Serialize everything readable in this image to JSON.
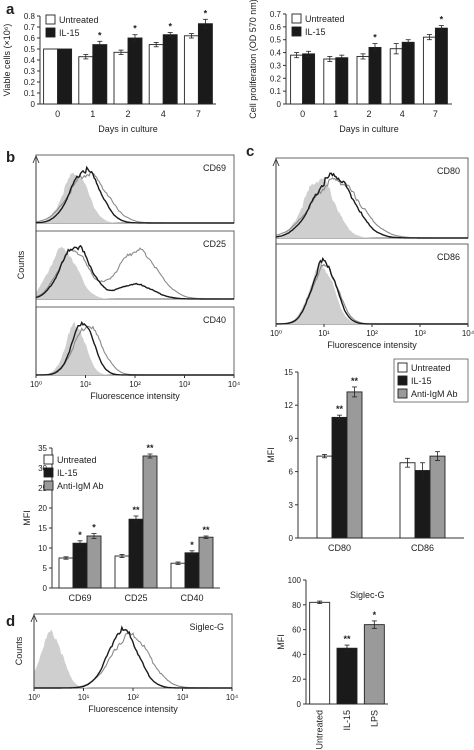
{
  "colors": {
    "untreated": "#ffffff",
    "il15": "#1a1a1a",
    "anti_igm": "#9a9a9a",
    "lps": "#9a9a9a",
    "isotype_fill": "#cfcfcf",
    "hist_dark": "#1a1a1a",
    "hist_gray": "#8a8a8a"
  },
  "panels": {
    "a": "a",
    "b": "b",
    "c": "c",
    "d": "d"
  },
  "chart_data": [
    {
      "id": "a-left",
      "type": "bar",
      "panel": "a",
      "ylabel": "Viable cells (×10⁶)",
      "xlabel": "Days in culture",
      "categories": [
        "0",
        "1",
        "2",
        "4",
        "7"
      ],
      "ylim": [
        0,
        0.8
      ],
      "yticks": [
        "0",
        "0.1",
        "0.2",
        "0.3",
        "0.4",
        "0.5",
        "0.6",
        "0.7",
        "0.8"
      ],
      "legend": [
        "Untreated",
        "IL-15"
      ],
      "legend_position": "top-left",
      "series": [
        {
          "name": "Untreated",
          "values": [
            0.5,
            0.43,
            0.47,
            0.54,
            0.62
          ],
          "errors": [
            0.0,
            0.02,
            0.02,
            0.02,
            0.02
          ]
        },
        {
          "name": "IL-15",
          "values": [
            0.5,
            0.54,
            0.6,
            0.63,
            0.73
          ],
          "errors": [
            0.0,
            0.03,
            0.03,
            0.02,
            0.04
          ]
        }
      ],
      "annotations": [
        {
          "category": "1",
          "series": "IL-15",
          "text": "*"
        },
        {
          "category": "2",
          "series": "IL-15",
          "text": "*"
        },
        {
          "category": "4",
          "series": "IL-15",
          "text": "*"
        },
        {
          "category": "7",
          "series": "IL-15",
          "text": "*"
        }
      ]
    },
    {
      "id": "a-right",
      "type": "bar",
      "panel": "a",
      "ylabel": "Cell proliferation (OD 570 nm)",
      "xlabel": "Days in culture",
      "categories": [
        "0",
        "1",
        "2",
        "4",
        "7"
      ],
      "ylim": [
        0,
        0.7
      ],
      "yticks": [
        "0",
        "0.1",
        "0.2",
        "0.3",
        "0.4",
        "0.5",
        "0.6",
        "0.7"
      ],
      "legend": [
        "Untreated",
        "IL-15"
      ],
      "legend_position": "top-left",
      "series": [
        {
          "name": "Untreated",
          "values": [
            0.38,
            0.35,
            0.37,
            0.43,
            0.52
          ],
          "errors": [
            0.02,
            0.02,
            0.02,
            0.04,
            0.02
          ]
        },
        {
          "name": "IL-15",
          "values": [
            0.39,
            0.36,
            0.44,
            0.48,
            0.59
          ],
          "errors": [
            0.02,
            0.02,
            0.03,
            0.02,
            0.02
          ]
        }
      ],
      "annotations": [
        {
          "category": "2",
          "series": "IL-15",
          "text": "*"
        },
        {
          "category": "7",
          "series": "IL-15",
          "text": "*"
        }
      ]
    },
    {
      "id": "b-mfi",
      "type": "bar",
      "panel": "b",
      "ylabel": "MFI",
      "categories": [
        "CD69",
        "CD25",
        "CD40"
      ],
      "ylim": [
        0,
        35
      ],
      "yticks": [
        "0",
        "5",
        "10",
        "15",
        "20",
        "25",
        "30",
        "35"
      ],
      "legend": [
        "Untreated",
        "IL-15",
        "Anti-IgM Ab"
      ],
      "legend_position": "top-left",
      "series": [
        {
          "name": "Untreated",
          "values": [
            7.5,
            8.0,
            6.2
          ],
          "errors": [
            0.3,
            0.4,
            0.3
          ]
        },
        {
          "name": "IL-15",
          "values": [
            11.2,
            17.2,
            8.8
          ],
          "errors": [
            0.6,
            0.8,
            0.5
          ]
        },
        {
          "name": "Anti-IgM Ab",
          "values": [
            13.0,
            33.0,
            12.7
          ],
          "errors": [
            0.6,
            0.5,
            0.3
          ]
        }
      ],
      "annotations": [
        {
          "category": "CD69",
          "series": "IL-15",
          "text": "*"
        },
        {
          "category": "CD69",
          "series": "Anti-IgM Ab",
          "text": "*"
        },
        {
          "category": "CD25",
          "series": "IL-15",
          "text": "**"
        },
        {
          "category": "CD25",
          "series": "Anti-IgM Ab",
          "text": "**"
        },
        {
          "category": "CD40",
          "series": "IL-15",
          "text": "*"
        },
        {
          "category": "CD40",
          "series": "Anti-IgM Ab",
          "text": "**"
        }
      ]
    },
    {
      "id": "c-mfi",
      "type": "bar",
      "panel": "c",
      "ylabel": "MFI",
      "categories": [
        "CD80",
        "CD86"
      ],
      "ylim": [
        0,
        15
      ],
      "yticks": [
        "0",
        "3",
        "6",
        "9",
        "12",
        "15"
      ],
      "legend": [
        "Untreated",
        "IL-15",
        "Anti-IgM Ab"
      ],
      "legend_position": "top-right",
      "series": [
        {
          "name": "Untreated",
          "values": [
            7.4,
            6.8
          ],
          "errors": [
            0.15,
            0.4
          ]
        },
        {
          "name": "IL-15",
          "values": [
            10.9,
            6.1
          ],
          "errors": [
            0.2,
            0.7
          ]
        },
        {
          "name": "Anti-IgM Ab",
          "values": [
            13.2,
            7.4
          ],
          "errors": [
            0.45,
            0.4
          ]
        }
      ],
      "annotations": [
        {
          "category": "CD80",
          "series": "IL-15",
          "text": "**"
        },
        {
          "category": "CD80",
          "series": "Anti-IgM Ab",
          "text": "**"
        }
      ]
    },
    {
      "id": "d-mfi",
      "type": "bar",
      "panel": "d",
      "title": "Siglec-G",
      "ylabel": "MFI",
      "categories": [
        "Untreated",
        "IL-15",
        "LPS"
      ],
      "ylim": [
        0,
        100
      ],
      "yticks": [
        "0",
        "20",
        "40",
        "60",
        "80",
        "100"
      ],
      "series": [
        {
          "name": "MFI",
          "values": [
            82,
            45,
            64
          ],
          "errors": [
            1.0,
            2.5,
            3.0
          ]
        }
      ],
      "annotations": [
        {
          "category": "IL-15",
          "text": "**"
        },
        {
          "category": "LPS",
          "text": "*"
        }
      ]
    },
    {
      "id": "b-hist",
      "type": "histogram",
      "panel": "b",
      "ylabel": "Counts",
      "xlabel": "Fluorescence intensity",
      "xticks": [
        "10⁰",
        "10¹",
        "10²",
        "10³",
        "10⁴"
      ],
      "x_scale": "log",
      "panes": [
        {
          "label": "CD69",
          "isotype": {
            "mu": 0.8,
            "sd": 0.25
          },
          "dark": [
            {
              "mu": 1.0,
              "sd": 0.3,
              "w": 1
            }
          ],
          "gray": [
            {
              "mu": 1.05,
              "sd": 0.38,
              "w": 0.85
            }
          ]
        },
        {
          "label": "CD25",
          "isotype": {
            "mu": 0.55,
            "sd": 0.28
          },
          "dark": [
            {
              "mu": 0.8,
              "sd": 0.3,
              "w": 1
            },
            {
              "mu": 2.0,
              "sd": 0.35,
              "w": 0.28
            }
          ],
          "gray": [
            {
              "mu": 0.75,
              "sd": 0.3,
              "w": 0.55
            },
            {
              "mu": 2.05,
              "sd": 0.4,
              "w": 0.55
            }
          ]
        },
        {
          "label": "CD40",
          "isotype": {
            "mu": 0.8,
            "sd": 0.2
          },
          "dark": [
            {
              "mu": 0.95,
              "sd": 0.22,
              "w": 1
            }
          ],
          "gray": [
            {
              "mu": 1.05,
              "sd": 0.28,
              "w": 0.9
            }
          ]
        }
      ]
    },
    {
      "id": "c-hist",
      "type": "histogram",
      "panel": "c",
      "xlabel": "Fluorescence intensity",
      "xticks": [
        "10⁰",
        "10¹",
        "10²",
        "10³",
        "10⁴"
      ],
      "x_scale": "log",
      "panes": [
        {
          "label": "CD80",
          "isotype": {
            "mu": 0.9,
            "sd": 0.32
          },
          "dark": [
            {
              "mu": 1.2,
              "sd": 0.42,
              "w": 1
            }
          ],
          "gray": [
            {
              "mu": 1.25,
              "sd": 0.5,
              "w": 0.85
            }
          ]
        },
        {
          "label": "CD86",
          "isotype": {
            "mu": 0.95,
            "sd": 0.25
          },
          "dark": [
            {
              "mu": 1.0,
              "sd": 0.25,
              "w": 1
            }
          ],
          "gray": [
            {
              "mu": 1.02,
              "sd": 0.27,
              "w": 0.95
            }
          ]
        }
      ]
    },
    {
      "id": "d-hist",
      "type": "histogram",
      "panel": "d",
      "title": "Siglec-G",
      "ylabel": "Counts",
      "xlabel": "Fluorescence intensity",
      "xticks": [
        "10⁰",
        "10¹",
        "10²",
        "10³",
        "10⁴"
      ],
      "x_scale": "log",
      "panes": [
        {
          "label": "Siglec-G",
          "isotype": {
            "mu": 0.35,
            "sd": 0.22
          },
          "dark": [
            {
              "mu": 1.8,
              "sd": 0.3,
              "w": 1
            }
          ],
          "gray": [
            {
              "mu": 1.95,
              "sd": 0.38,
              "w": 0.8
            }
          ]
        }
      ]
    }
  ]
}
